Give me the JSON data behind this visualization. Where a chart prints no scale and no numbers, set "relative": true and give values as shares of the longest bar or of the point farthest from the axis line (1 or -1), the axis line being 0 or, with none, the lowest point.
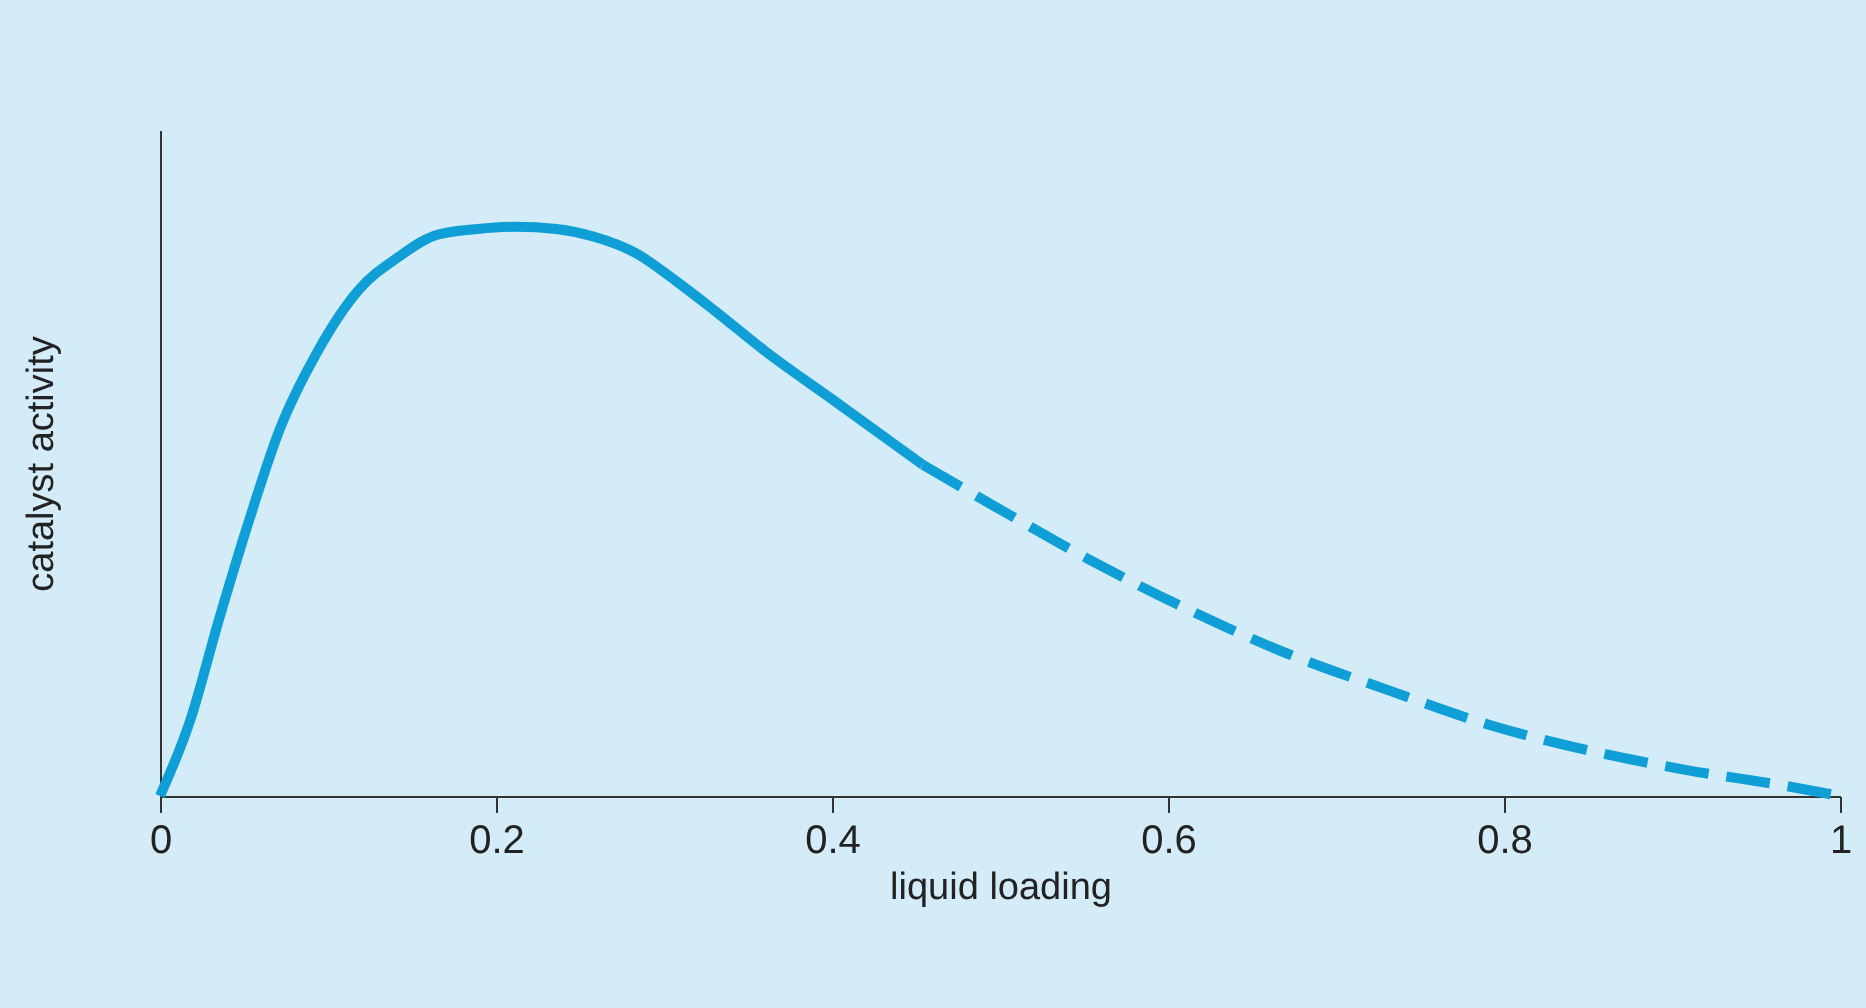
{
  "chart_data": {
    "type": "line",
    "xlabel": "liquid loading",
    "ylabel": "catalyst activity",
    "relative": true,
    "xlim": [
      0,
      1
    ],
    "xticks": [
      0,
      0.2,
      0.4,
      0.6,
      0.8,
      1
    ],
    "grid": false,
    "series": [
      {
        "color": "#0f9fd6",
        "line_style": "solid",
        "x": [
          0,
          0.018,
          0.035,
          0.053,
          0.071,
          0.094,
          0.118,
          0.142,
          0.165,
          0.189,
          0.212,
          0.236,
          0.259,
          0.283,
          0.307,
          0.33,
          0.36,
          0.401,
          0.454
        ],
        "values": [
          0,
          0.133,
          0.309,
          0.484,
          0.642,
          0.782,
          0.888,
          0.947,
          0.986,
          0.996,
          1.0,
          0.996,
          0.982,
          0.954,
          0.905,
          0.853,
          0.782,
          0.695,
          0.582
        ]
      },
      {
        "color": "#0f9fd6",
        "line_style": "dashed",
        "x": [
          0.454,
          0.495,
          0.554,
          0.613,
          0.672,
          0.731,
          0.79,
          0.849,
          0.908,
          0.967,
          1.0
        ],
        "values": [
          0.582,
          0.512,
          0.414,
          0.326,
          0.249,
          0.186,
          0.126,
          0.081,
          0.046,
          0.018,
          0
        ]
      }
    ]
  }
}
